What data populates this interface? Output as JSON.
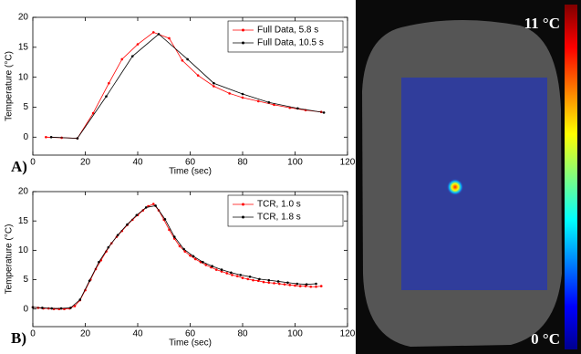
{
  "chart_data": [
    {
      "type": "line",
      "panel_label": "A)",
      "xlabel": "Time (sec)",
      "ylabel": "Temperature (°C)",
      "xlim": [
        0,
        120
      ],
      "xticks": [
        0,
        20,
        40,
        60,
        80,
        100,
        120
      ],
      "ylim": [
        -3,
        20
      ],
      "yticks": [
        0,
        5,
        10,
        15,
        20
      ],
      "legend": "upper right",
      "series": [
        {
          "name": "Full Data, 5.8 s",
          "color": "#ff0000",
          "x": [
            5,
            11,
            17,
            23,
            29,
            34,
            40,
            46,
            52,
            57,
            63,
            69,
            75,
            80,
            86,
            92,
            98,
            104,
            110
          ],
          "values": [
            0,
            -0.1,
            -0.2,
            4,
            9,
            13,
            15.5,
            17.5,
            16.5,
            12.8,
            10.3,
            8.5,
            7.3,
            6.6,
            6,
            5.4,
            4.9,
            4.5,
            4.2
          ]
        },
        {
          "name": "Full Data, 10.5 s",
          "color": "#000000",
          "x": [
            7,
            17,
            28,
            38,
            48,
            59,
            69,
            80,
            90,
            101,
            111
          ],
          "values": [
            0,
            -0.2,
            6.8,
            13.5,
            17.2,
            13,
            9,
            7.2,
            5.8,
            4.8,
            4.1
          ]
        }
      ]
    },
    {
      "type": "line",
      "panel_label": "B)",
      "xlabel": "Time (sec)",
      "ylabel": "Temperature (°C)",
      "xlim": [
        0,
        120
      ],
      "xticks": [
        0,
        20,
        40,
        60,
        80,
        100,
        120
      ],
      "ylim": [
        -3,
        20
      ],
      "yticks": [
        0,
        5,
        10,
        15,
        20
      ],
      "legend": "upper right",
      "series": [
        {
          "name": "TCR, 1.0 s",
          "color": "#ff0000",
          "x": [
            0,
            2,
            4,
            6,
            8,
            10,
            12,
            14,
            16,
            18,
            20,
            22,
            24,
            26,
            28,
            30,
            32,
            34,
            36,
            38,
            40,
            42,
            44,
            46,
            48,
            50,
            52,
            54,
            56,
            58,
            60,
            62,
            64,
            66,
            68,
            70,
            72,
            74,
            76,
            78,
            80,
            82,
            84,
            86,
            88,
            90,
            92,
            94,
            96,
            98,
            100,
            102,
            104,
            106,
            108,
            110
          ],
          "values": [
            0.3,
            0.2,
            0.1,
            0.1,
            0,
            0,
            0,
            0.1,
            0.5,
            1.5,
            3.2,
            5,
            6.8,
            8.3,
            9.8,
            11.2,
            12.3,
            13.3,
            14.3,
            15.2,
            16,
            16.8,
            17.5,
            17.9,
            16.8,
            15.2,
            13.5,
            12,
            10.7,
            9.8,
            9.1,
            8.5,
            8,
            7.5,
            7.1,
            6.7,
            6.4,
            6.1,
            5.8,
            5.6,
            5.3,
            5.1,
            4.9,
            4.8,
            4.6,
            4.5,
            4.4,
            4.3,
            4.2,
            4.1,
            4,
            3.9,
            3.9,
            3.8,
            3.8,
            3.9
          ]
        },
        {
          "name": "TCR, 1.8 s",
          "color": "#000000",
          "x": [
            0,
            3.6,
            7.2,
            10.8,
            14.4,
            18,
            21.6,
            25.2,
            28.8,
            32.4,
            36,
            39.6,
            43.2,
            46.8,
            50.4,
            54,
            57.6,
            61.2,
            64.8,
            68.4,
            72,
            75.6,
            79.2,
            82.8,
            86.4,
            90,
            93.6,
            97.2,
            100.8,
            104.4,
            108
          ],
          "values": [
            0.3,
            0.2,
            0.1,
            0.1,
            0.2,
            1.6,
            4.8,
            8,
            10.5,
            12.6,
            14.4,
            16,
            17.3,
            17.6,
            15.3,
            12.3,
            10.2,
            9,
            8,
            7.3,
            6.7,
            6.2,
            5.8,
            5.5,
            5.1,
            4.9,
            4.7,
            4.5,
            4.3,
            4.2,
            4.3
          ]
        }
      ]
    }
  ],
  "image": {
    "max_label": "11 °C",
    "min_label": "0 °C"
  }
}
